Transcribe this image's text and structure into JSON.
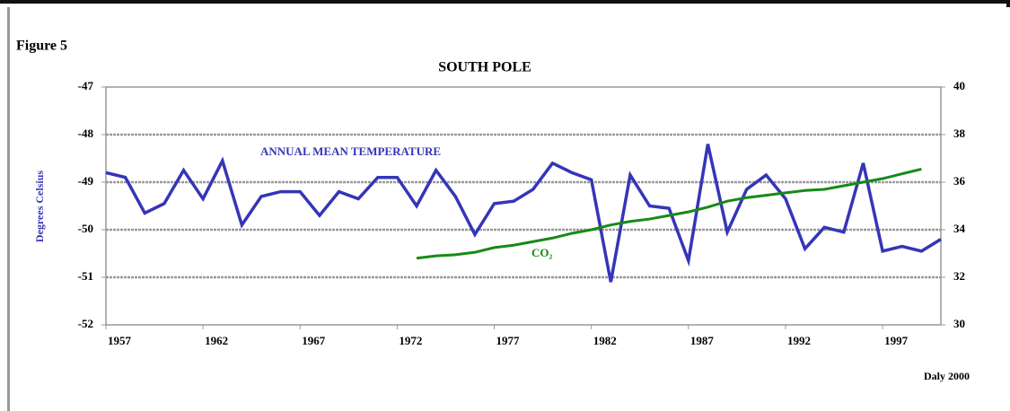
{
  "chart_data": {
    "type": "line",
    "figure_label": "Figure 5",
    "title": "SOUTH POLE",
    "y_label": "Degrees Celsius",
    "credit": "Daly 2000",
    "x": [
      1957,
      1958,
      1959,
      1960,
      1961,
      1962,
      1963,
      1964,
      1965,
      1966,
      1967,
      1968,
      1969,
      1970,
      1971,
      1972,
      1973,
      1974,
      1975,
      1976,
      1977,
      1978,
      1979,
      1980,
      1981,
      1982,
      1983,
      1984,
      1985,
      1986,
      1987,
      1988,
      1989,
      1990,
      1991,
      1992,
      1993,
      1994,
      1995,
      1996,
      1997,
      1998,
      1999,
      2000
    ],
    "xlim": [
      1957,
      2000
    ],
    "xticks": [
      1957,
      1962,
      1967,
      1972,
      1977,
      1982,
      1987,
      1992,
      1997
    ],
    "ylim": [
      -52,
      -47
    ],
    "yticks": [
      -52,
      -51,
      -50,
      -49,
      -48,
      -47
    ],
    "y2lim": [
      30,
      40
    ],
    "y2ticks": [
      30,
      32,
      34,
      36,
      38,
      40
    ],
    "grid": true,
    "series": [
      {
        "name": "ANNUAL MEAN TEMPERATURE",
        "color": "#3535b8",
        "values": [
          -48.8,
          -48.9,
          -49.65,
          -49.45,
          -48.75,
          -49.35,
          -48.55,
          -49.9,
          -49.3,
          -49.2,
          -49.2,
          -49.7,
          -49.2,
          -49.35,
          -48.9,
          -48.9,
          -49.5,
          -48.75,
          -49.3,
          -50.1,
          -49.45,
          -49.4,
          -49.15,
          -48.6,
          -48.8,
          -48.95,
          -51.1,
          -48.85,
          -49.5,
          -49.55,
          -50.65,
          -48.2,
          -50.05,
          -49.15,
          -48.85,
          -49.35,
          -50.4,
          -49.95,
          -50.05,
          -48.6,
          -50.45,
          -50.35,
          -50.45,
          -50.2
        ]
      },
      {
        "name": "CO₂",
        "color": "#168a16",
        "axis": "y2",
        "values": [
          null,
          null,
          null,
          null,
          null,
          null,
          null,
          null,
          null,
          null,
          null,
          null,
          null,
          null,
          null,
          null,
          32.8,
          32.9,
          32.95,
          33.05,
          33.25,
          33.35,
          33.5,
          33.65,
          33.85,
          34.0,
          34.2,
          34.35,
          34.45,
          34.6,
          34.75,
          34.95,
          35.2,
          35.35,
          35.45,
          35.55,
          35.65,
          35.7,
          35.85,
          36.0,
          36.15,
          36.35,
          36.55,
          null
        ]
      }
    ]
  }
}
